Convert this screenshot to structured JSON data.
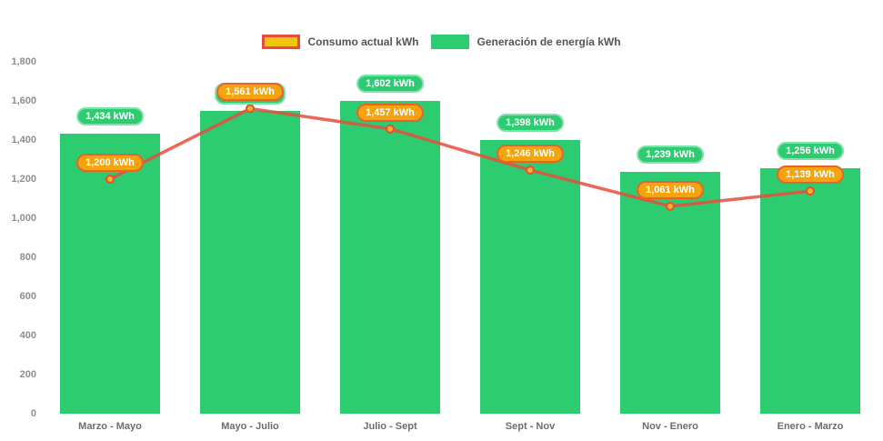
{
  "legend": {
    "items": [
      {
        "label": "Consumo actual kWh",
        "swatch_fill": "#f1c40f",
        "swatch_border": "#e74c3c"
      },
      {
        "label": "Generación de energía kWh",
        "swatch_fill": "#2ecc71",
        "swatch_border": "#2ecc71"
      }
    ]
  },
  "chart_data": {
    "type": "combo-bar-line",
    "title": "",
    "categories": [
      "Marzo - Mayo",
      "Mayo - Julio",
      "Julio - Sept",
      "Sept - Nov",
      "Nov - Enero",
      "Enero - Marzo"
    ],
    "series": [
      {
        "name": "Generación de energía kWh",
        "type": "bar",
        "color": "#2ecc71",
        "values": [
          1434,
          1550,
          1602,
          1398,
          1239,
          1256
        ],
        "labels": [
          "1,434 kWh",
          "",
          "1,602 kWh",
          "1,398 kWh",
          "1,239 kWh",
          "1,256 kWh"
        ]
      },
      {
        "name": "Consumo actual kWh",
        "type": "line",
        "color": "#e74c3c",
        "point_fill": "#f6b31b",
        "values": [
          1200,
          1561,
          1457,
          1246,
          1061,
          1139
        ],
        "labels": [
          "1,200 kWh",
          "1,561 kWh",
          "1,457 kWh",
          "1,246 kWh",
          "1,061 kWh",
          "1,139 kWh"
        ]
      }
    ],
    "ylim": [
      0,
      1800
    ],
    "ytick_step": 200,
    "yticks": [
      "0",
      "200",
      "400",
      "600",
      "800",
      "1,000",
      "1,200",
      "1,400",
      "1,600",
      "1,800"
    ],
    "grid": false,
    "legend_position": "top",
    "unit": "kWh"
  },
  "colors": {
    "bar": "#2ecc71",
    "bar_label_border": "#7fe2aa",
    "line": "#e74c3c",
    "line_label_fill": "#f4a40e",
    "line_label_border": "#e8632c",
    "axis_text": "#8e8e8e",
    "category_text": "#6d6d6d"
  }
}
